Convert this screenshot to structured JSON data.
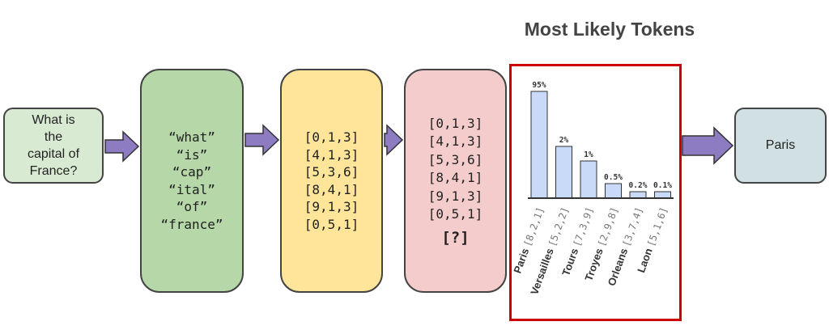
{
  "question": {
    "lines": [
      "What is",
      "the",
      "capital of",
      "France?"
    ]
  },
  "tokens": [
    "“what”",
    "“is”",
    "“cap”",
    "“ital”",
    "“of”",
    "“france”"
  ],
  "token_ids": [
    "[0,1,3]",
    "[4,1,3]",
    "[5,3,6]",
    "[8,4,1]",
    "[9,1,3]",
    "[0,5,1]"
  ],
  "context_ids": [
    "[0,1,3]",
    "[4,1,3]",
    "[5,3,6]",
    "[8,4,1]",
    "[9,1,3]",
    "[0,5,1]"
  ],
  "next_token_placeholder": "[?]",
  "answer": "Paris",
  "colors": {
    "question_bg": "#d9ead3",
    "tokens_bg": "#b6d7a8",
    "ids_bg": "#ffe599",
    "ctx_bg": "#f4cccc",
    "answer_bg": "#d0e0e3",
    "arrow": "#8e7cc3",
    "bar_fill": "#c9daf8",
    "frame": "#cc0000"
  },
  "chart_data": {
    "type": "bar",
    "title": "Most Likely Tokens",
    "categories": [
      "Paris",
      "Versailles",
      "Tours",
      "Troyes",
      "Orleans",
      "Laon"
    ],
    "category_ids": [
      "[8,2,1]",
      "[5,2,2]",
      "[7,3,9]",
      "[2,9,8]",
      "[3,7,4]",
      "[5,1,6]"
    ],
    "values": [
      95,
      2,
      1,
      0.5,
      0.2,
      0.1
    ],
    "value_labels": [
      "95%",
      "2%",
      "1%",
      "0.5%",
      "0.2%",
      "0.1%"
    ],
    "display_heights": [
      132,
      64,
      46,
      18,
      8,
      8
    ],
    "xlabel": "",
    "ylabel": "",
    "grid": false,
    "legend": "none"
  }
}
